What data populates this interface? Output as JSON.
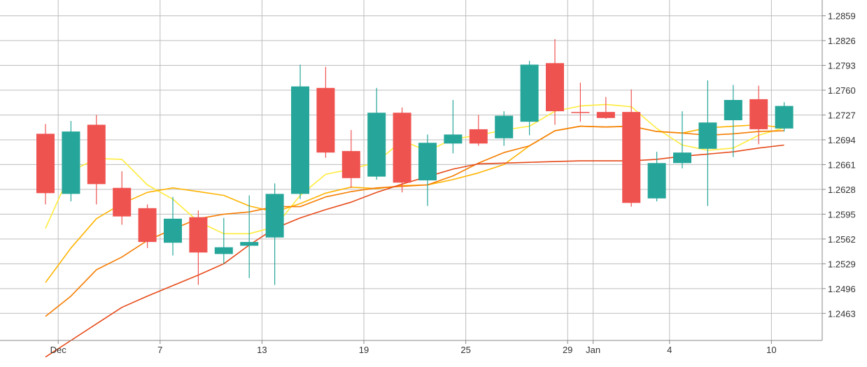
{
  "chart_data": {
    "type": "candlestick",
    "title": "",
    "xlabel": "",
    "ylabel": "",
    "ylim": [
      1.2427,
      1.288
    ],
    "y_ticks": [
      "1.2463",
      "1.2496",
      "1.2529",
      "1.2562",
      "1.2595",
      "1.2628",
      "1.2661",
      "1.2694",
      "1.2727",
      "1.2760",
      "1.2793",
      "1.2826",
      "1.2859"
    ],
    "x_ticks": [
      {
        "index": 0.5,
        "label": "Dec"
      },
      {
        "index": 4.5,
        "label": "7"
      },
      {
        "index": 8.5,
        "label": "13"
      },
      {
        "index": 12.5,
        "label": "19"
      },
      {
        "index": 16.5,
        "label": "25"
      },
      {
        "index": 20.5,
        "label": "29"
      },
      {
        "index": 21.5,
        "label": "Jan"
      },
      {
        "index": 24.5,
        "label": "4"
      },
      {
        "index": 28.5,
        "label": "10"
      }
    ],
    "grid": true,
    "colors": {
      "up": "#26a69a",
      "down": "#ef5350",
      "ma_fast": "#ffeb3b",
      "ma_mid": "#ffb300",
      "ma_slow": "#f57c00",
      "ma_slowest": "#e64a19",
      "grid": "#bdbdbd",
      "axis_text": "#333333"
    },
    "candles": [
      {
        "open": 1.2702,
        "high": 1.2715,
        "low": 1.2608,
        "close": 1.2623
      },
      {
        "open": 1.2622,
        "high": 1.2719,
        "low": 1.2612,
        "close": 1.2705
      },
      {
        "open": 1.2714,
        "high": 1.2727,
        "low": 1.2608,
        "close": 1.2635
      },
      {
        "open": 1.263,
        "high": 1.2652,
        "low": 1.2581,
        "close": 1.2592
      },
      {
        "open": 1.2603,
        "high": 1.2608,
        "low": 1.255,
        "close": 1.2558
      },
      {
        "open": 1.2557,
        "high": 1.2618,
        "low": 1.254,
        "close": 1.2589
      },
      {
        "open": 1.2591,
        "high": 1.26,
        "low": 1.2501,
        "close": 1.2544
      },
      {
        "open": 1.2542,
        "high": 1.259,
        "low": 1.2529,
        "close": 1.2551
      },
      {
        "open": 1.2553,
        "high": 1.262,
        "low": 1.251,
        "close": 1.2558
      },
      {
        "open": 1.2564,
        "high": 1.2636,
        "low": 1.2501,
        "close": 1.2622
      },
      {
        "open": 1.2622,
        "high": 1.2794,
        "low": 1.2615,
        "close": 1.2765
      },
      {
        "open": 1.2763,
        "high": 1.2791,
        "low": 1.267,
        "close": 1.2677
      },
      {
        "open": 1.2679,
        "high": 1.2707,
        "low": 1.263,
        "close": 1.2643
      },
      {
        "open": 1.2645,
        "high": 1.2763,
        "low": 1.2641,
        "close": 1.273
      },
      {
        "open": 1.273,
        "high": 1.2737,
        "low": 1.2624,
        "close": 1.2637
      },
      {
        "open": 1.264,
        "high": 1.2701,
        "low": 1.2606,
        "close": 1.269
      },
      {
        "open": 1.2689,
        "high": 1.2747,
        "low": 1.2676,
        "close": 1.2701
      },
      {
        "open": 1.2708,
        "high": 1.2727,
        "low": 1.2686,
        "close": 1.2689
      },
      {
        "open": 1.2696,
        "high": 1.2732,
        "low": 1.2686,
        "close": 1.2726
      },
      {
        "open": 1.2718,
        "high": 1.2799,
        "low": 1.27,
        "close": 1.2794
      },
      {
        "open": 1.2796,
        "high": 1.2828,
        "low": 1.2714,
        "close": 1.2732
      },
      {
        "open": 1.2731,
        "high": 1.277,
        "low": 1.2718,
        "close": 1.273
      },
      {
        "open": 1.2731,
        "high": 1.2751,
        "low": 1.2722,
        "close": 1.2723
      },
      {
        "open": 1.2731,
        "high": 1.2761,
        "low": 1.2605,
        "close": 1.261
      },
      {
        "open": 1.2616,
        "high": 1.2678,
        "low": 1.2612,
        "close": 1.2663
      },
      {
        "open": 1.2663,
        "high": 1.2732,
        "low": 1.2656,
        "close": 1.2677
      },
      {
        "open": 1.2682,
        "high": 1.2773,
        "low": 1.2606,
        "close": 1.2717
      },
      {
        "open": 1.272,
        "high": 1.2767,
        "low": 1.2671,
        "close": 1.2747
      },
      {
        "open": 1.2748,
        "high": 1.2766,
        "low": 1.2688,
        "close": 1.2708
      },
      {
        "open": 1.2709,
        "high": 1.2744,
        "low": 1.2705,
        "close": 1.2739
      }
    ],
    "moving_averages": [
      {
        "color_key": "ma_fast",
        "values": [
          [
            0,
            1.2576
          ],
          [
            1,
            1.2652
          ],
          [
            2,
            1.2669
          ],
          [
            3,
            1.2668
          ],
          [
            4,
            1.2634
          ],
          [
            5,
            1.2615
          ],
          [
            6,
            1.2585
          ],
          [
            7,
            1.2569
          ],
          [
            8,
            1.2569
          ],
          [
            9,
            1.2578
          ],
          [
            10,
            1.262
          ],
          [
            11,
            1.2648
          ],
          [
            12,
            1.2655
          ],
          [
            13,
            1.2664
          ],
          [
            14,
            1.2693
          ],
          [
            15,
            1.2679
          ],
          [
            16,
            1.2695
          ],
          [
            17,
            1.27
          ],
          [
            18,
            1.2707
          ],
          [
            19,
            1.2712
          ],
          [
            20,
            1.2732
          ],
          [
            21,
            1.2739
          ],
          [
            22,
            1.2741
          ],
          [
            23,
            1.2738
          ],
          [
            24,
            1.2709
          ],
          [
            25,
            1.2687
          ],
          [
            26,
            1.268
          ],
          [
            27,
            1.2683
          ],
          [
            28,
            1.27
          ],
          [
            29,
            1.271
          ]
        ]
      },
      {
        "color_key": "ma_mid",
        "values": [
          [
            0,
            1.2504
          ],
          [
            1,
            1.255
          ],
          [
            2,
            1.2589
          ],
          [
            3,
            1.2609
          ],
          [
            4,
            1.2624
          ],
          [
            5,
            1.263
          ],
          [
            6,
            1.2625
          ],
          [
            7,
            1.262
          ],
          [
            8,
            1.2606
          ],
          [
            9,
            1.2598
          ],
          [
            10,
            1.2609
          ],
          [
            11,
            1.2623
          ],
          [
            12,
            1.2631
          ],
          [
            13,
            1.2629
          ],
          [
            14,
            1.2633
          ],
          [
            15,
            1.2634
          ],
          [
            16,
            1.2641
          ],
          [
            17,
            1.265
          ],
          [
            18,
            1.2661
          ],
          [
            19,
            1.2686
          ],
          [
            20,
            1.2706
          ],
          [
            21,
            1.2712
          ],
          [
            22,
            1.2711
          ],
          [
            23,
            1.2712
          ],
          [
            24,
            1.2705
          ],
          [
            25,
            1.2703
          ],
          [
            26,
            1.271
          ],
          [
            27,
            1.2712
          ],
          [
            28,
            1.2714
          ],
          [
            29,
            1.271
          ]
        ]
      },
      {
        "color_key": "ma_slow",
        "values": [
          [
            0,
            1.2459
          ],
          [
            1,
            1.2486
          ],
          [
            2,
            1.2521
          ],
          [
            3,
            1.2538
          ],
          [
            4,
            1.256
          ],
          [
            5,
            1.2575
          ],
          [
            6,
            1.2589
          ],
          [
            7,
            1.2595
          ],
          [
            8,
            1.2598
          ],
          [
            9,
            1.2605
          ],
          [
            10,
            1.2605
          ],
          [
            11,
            1.2618
          ],
          [
            12,
            1.2625
          ],
          [
            13,
            1.263
          ],
          [
            14,
            1.2632
          ],
          [
            15,
            1.2634
          ],
          [
            16,
            1.2646
          ],
          [
            17,
            1.2663
          ],
          [
            18,
            1.2677
          ],
          [
            19,
            1.2686
          ],
          [
            20,
            1.2706
          ],
          [
            21,
            1.2712
          ],
          [
            22,
            1.2711
          ],
          [
            23,
            1.2712
          ],
          [
            24,
            1.2705
          ],
          [
            25,
            1.2703
          ],
          [
            26,
            1.27
          ],
          [
            27,
            1.2702
          ],
          [
            28,
            1.2705
          ],
          [
            29,
            1.2706
          ]
        ]
      },
      {
        "color_key": "ma_slowest",
        "values": [
          [
            0,
            1.2405
          ],
          [
            1,
            1.2427
          ],
          [
            2,
            1.2449
          ],
          [
            3,
            1.2471
          ],
          [
            4,
            1.2486
          ],
          [
            5,
            1.25
          ],
          [
            6,
            1.2514
          ],
          [
            7,
            1.2529
          ],
          [
            8,
            1.2554
          ],
          [
            9,
            1.2576
          ],
          [
            10,
            1.259
          ],
          [
            11,
            1.2601
          ],
          [
            12,
            1.2611
          ],
          [
            13,
            1.2624
          ],
          [
            14,
            1.2635
          ],
          [
            15,
            1.2645
          ],
          [
            16,
            1.2655
          ],
          [
            17,
            1.2662
          ],
          [
            18,
            1.2663
          ],
          [
            19,
            1.2664
          ],
          [
            20,
            1.2665
          ],
          [
            21,
            1.2666
          ],
          [
            22,
            1.2666
          ],
          [
            23,
            1.2666
          ],
          [
            24,
            1.2668
          ],
          [
            25,
            1.2672
          ],
          [
            26,
            1.2675
          ],
          [
            27,
            1.2678
          ],
          [
            28,
            1.2683
          ],
          [
            29,
            1.2687
          ]
        ]
      }
    ]
  }
}
